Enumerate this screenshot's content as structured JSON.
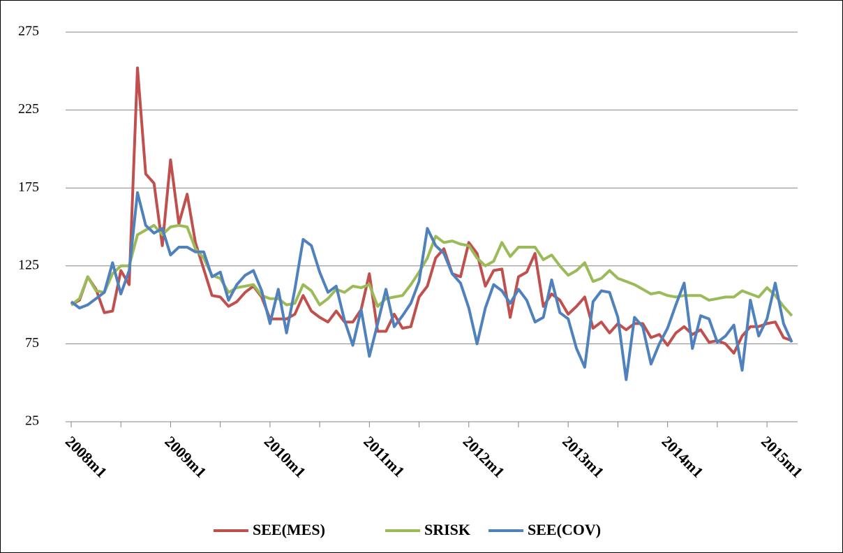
{
  "chart_data": {
    "type": "line",
    "categories": [
      "2008m1",
      null,
      null,
      null,
      null,
      null,
      null,
      null,
      null,
      null,
      null,
      null,
      "2009m1",
      null,
      null,
      null,
      null,
      null,
      null,
      null,
      null,
      null,
      null,
      null,
      "2010m1",
      null,
      null,
      null,
      null,
      null,
      null,
      null,
      null,
      null,
      null,
      null,
      "2011m1",
      null,
      null,
      null,
      null,
      null,
      null,
      null,
      null,
      null,
      null,
      null,
      "2012m1",
      null,
      null,
      null,
      null,
      null,
      null,
      null,
      null,
      null,
      null,
      null,
      "2013m1",
      null,
      null,
      null,
      null,
      null,
      null,
      null,
      null,
      null,
      null,
      null,
      "2014m1",
      null,
      null,
      null,
      null,
      null,
      null,
      null,
      null,
      null,
      null,
      null,
      "2015m1",
      null,
      null,
      null
    ],
    "series": [
      {
        "name": "SEE(MES)",
        "color": "#c0504d",
        "values": [
          100,
          103,
          118,
          110,
          95,
          96,
          122,
          113,
          252,
          184,
          178,
          138,
          193,
          152,
          171,
          140,
          123,
          106,
          105,
          99,
          102,
          108,
          112,
          105,
          91,
          91,
          91,
          94,
          106,
          96,
          92,
          89,
          96,
          89,
          89,
          97,
          120,
          83,
          83,
          94,
          85,
          86,
          105,
          112,
          130,
          136,
          120,
          118,
          140,
          133,
          112,
          122,
          123,
          92,
          118,
          121,
          133,
          99,
          107,
          103,
          94,
          99,
          105,
          85,
          89,
          82,
          88,
          84,
          88,
          88,
          79,
          81,
          74,
          82,
          86,
          81,
          84,
          76,
          77,
          75,
          69,
          80,
          86,
          86,
          88,
          89,
          79,
          77
        ]
      },
      {
        "name": "SRISK",
        "color": "#9bbb59",
        "values": [
          100,
          104,
          118,
          109,
          108,
          120,
          125,
          125,
          145,
          148,
          151,
          145,
          150,
          151,
          150,
          136,
          130,
          119,
          117,
          108,
          111,
          112,
          113,
          106,
          104,
          104,
          100,
          101,
          113,
          109,
          100,
          104,
          110,
          108,
          112,
          111,
          113,
          99,
          104,
          105,
          106,
          113,
          121,
          130,
          144,
          140,
          141,
          139,
          138,
          130,
          125,
          128,
          140,
          131,
          137,
          137,
          137,
          129,
          132,
          125,
          119,
          122,
          127,
          115,
          117,
          122,
          117,
          115,
          113,
          110,
          107,
          108,
          106,
          105,
          106,
          106,
          106,
          103,
          104,
          105,
          105,
          109,
          107,
          105,
          111,
          106,
          99,
          93
        ]
      },
      {
        "name": "SEE(COV)",
        "color": "#4f81bd",
        "values": [
          102,
          98,
          100,
          104,
          108,
          127,
          107,
          122,
          172,
          151,
          146,
          149,
          132,
          137,
          137,
          134,
          134,
          118,
          121,
          103,
          113,
          119,
          122,
          109,
          88,
          110,
          82,
          110,
          142,
          138,
          121,
          108,
          112,
          90,
          74,
          97,
          67,
          88,
          110,
          86,
          93,
          101,
          115,
          149,
          138,
          133,
          120,
          114,
          98,
          75,
          98,
          113,
          109,
          101,
          110,
          103,
          89,
          92,
          116,
          95,
          91,
          72,
          60,
          102,
          109,
          108,
          92,
          52,
          92,
          86,
          62,
          75,
          85,
          100,
          114,
          72,
          93,
          91,
          76,
          80,
          87,
          58,
          103,
          80,
          91,
          114,
          88,
          76
        ]
      }
    ],
    "ylim": [
      25,
      275
    ],
    "yticks": [
      25,
      75,
      125,
      175,
      225,
      275
    ],
    "grid": true
  }
}
